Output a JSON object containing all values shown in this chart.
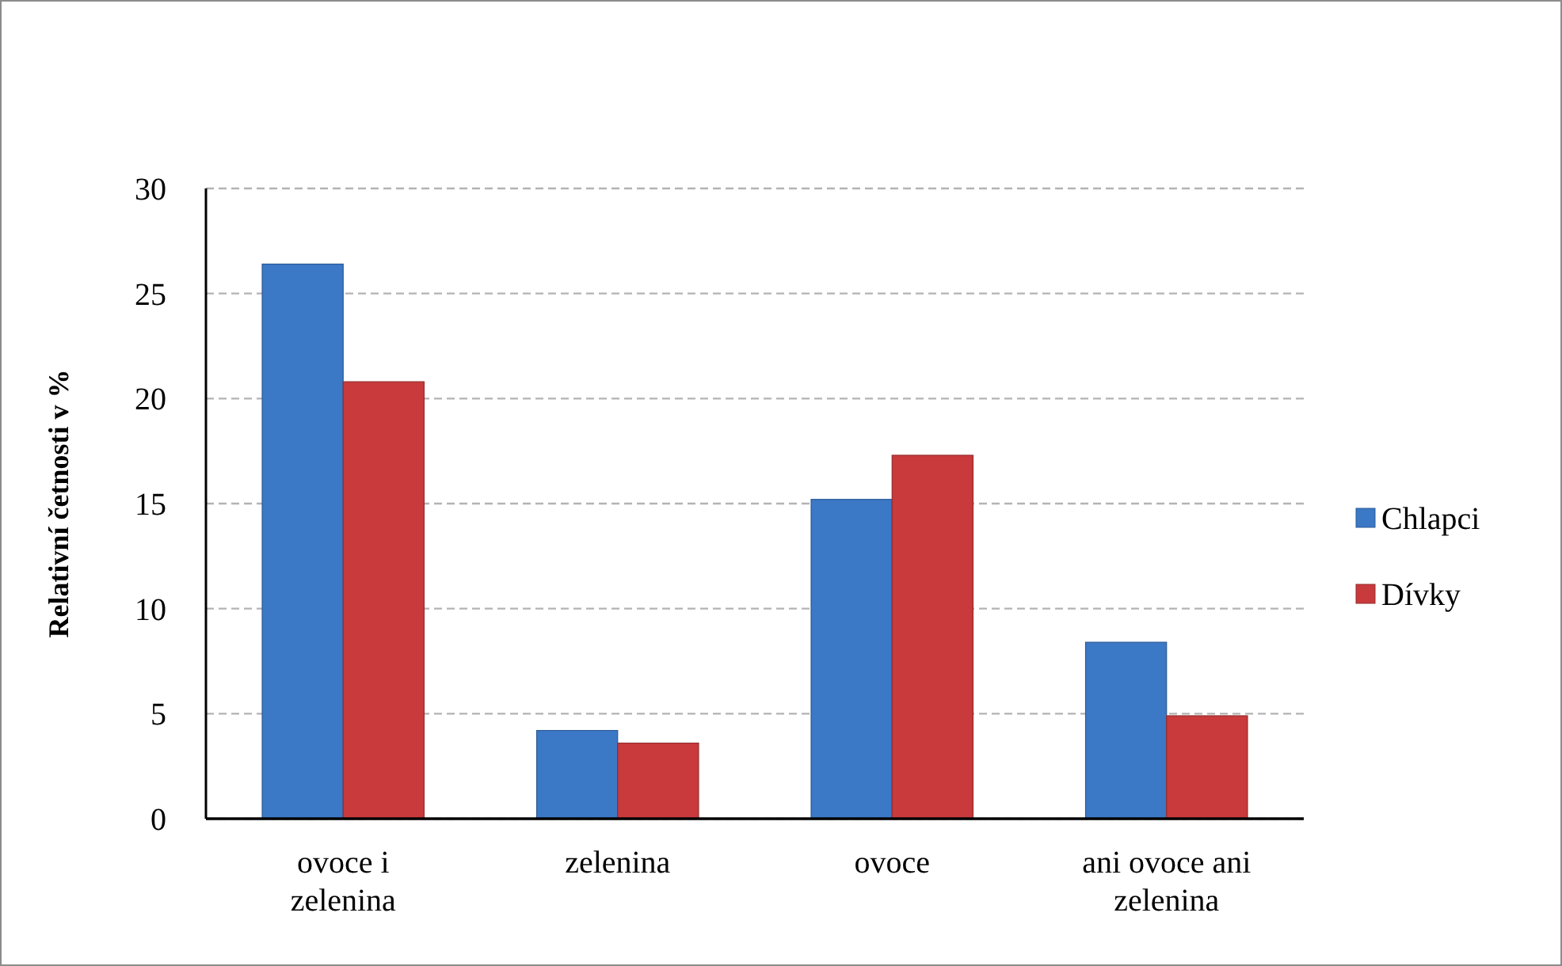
{
  "chart_data": {
    "type": "bar",
    "categories": [
      "ovoce i zelenina",
      "zelenina",
      "ovoce",
      "ani ovoce ani zelenina"
    ],
    "series": [
      {
        "name": "Chlapci",
        "color": "#3b78c6",
        "values": [
          26.4,
          4.2,
          15.2,
          8.4
        ]
      },
      {
        "name": "Dívky",
        "color": "#c83a3c",
        "values": [
          20.8,
          3.6,
          17.3,
          4.9
        ]
      }
    ],
    "ylabel": "Relativní četnosti v %",
    "ylim": [
      0,
      30
    ],
    "yticks": [
      0,
      5,
      10,
      15,
      20,
      25,
      30
    ],
    "grid": "y",
    "legend": "right"
  }
}
